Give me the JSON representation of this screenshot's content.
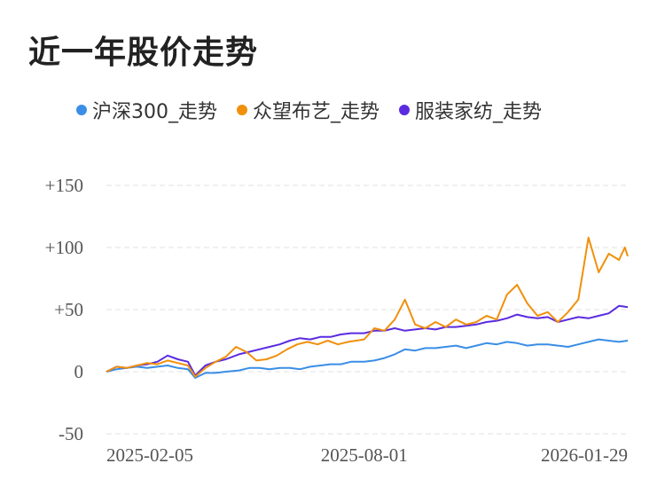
{
  "page": {
    "title": "近一年股价走势"
  },
  "chart_data": {
    "type": "line",
    "title": "近一年股价走势",
    "xlabel": "",
    "ylabel": "",
    "x_tick_labels": [
      "2025-02-05",
      "2025-08-01",
      "2026-01-29"
    ],
    "y_ticks": [
      {
        "value": 150,
        "label": "+150"
      },
      {
        "value": 100,
        "label": "+100"
      },
      {
        "value": 50,
        "label": "+50"
      },
      {
        "value": 0,
        "label": "0"
      },
      {
        "value": -50,
        "label": "-50"
      }
    ],
    "ylim": [
      -50,
      150
    ],
    "xlim": [
      "2025-02-05",
      "2026-01-29"
    ],
    "grid": true,
    "legend_position": "top",
    "series": [
      {
        "name": "沪深300_走势",
        "color": "#3a8ee6",
        "points": [
          [
            "2025-02-05",
            0
          ],
          [
            "2025-02-12",
            2
          ],
          [
            "2025-02-19",
            3
          ],
          [
            "2025-02-26",
            4
          ],
          [
            "2025-03-05",
            3
          ],
          [
            "2025-03-12",
            4
          ],
          [
            "2025-03-19",
            5
          ],
          [
            "2025-03-26",
            3
          ],
          [
            "2025-04-02",
            2
          ],
          [
            "2025-04-07",
            -5
          ],
          [
            "2025-04-14",
            -1
          ],
          [
            "2025-04-21",
            -1
          ],
          [
            "2025-04-28",
            0
          ],
          [
            "2025-05-07",
            1
          ],
          [
            "2025-05-14",
            3
          ],
          [
            "2025-05-21",
            3
          ],
          [
            "2025-05-28",
            2
          ],
          [
            "2025-06-04",
            3
          ],
          [
            "2025-06-11",
            3
          ],
          [
            "2025-06-18",
            2
          ],
          [
            "2025-06-25",
            4
          ],
          [
            "2025-07-02",
            5
          ],
          [
            "2025-07-09",
            6
          ],
          [
            "2025-07-16",
            6
          ],
          [
            "2025-07-23",
            8
          ],
          [
            "2025-08-01",
            8
          ],
          [
            "2025-08-08",
            9
          ],
          [
            "2025-08-15",
            11
          ],
          [
            "2025-08-22",
            14
          ],
          [
            "2025-08-29",
            18
          ],
          [
            "2025-09-05",
            17
          ],
          [
            "2025-09-12",
            19
          ],
          [
            "2025-09-19",
            19
          ],
          [
            "2025-09-26",
            20
          ],
          [
            "2025-10-03",
            21
          ],
          [
            "2025-10-10",
            19
          ],
          [
            "2025-10-17",
            21
          ],
          [
            "2025-10-24",
            23
          ],
          [
            "2025-10-31",
            22
          ],
          [
            "2025-11-07",
            24
          ],
          [
            "2025-11-14",
            23
          ],
          [
            "2025-11-21",
            21
          ],
          [
            "2025-11-28",
            22
          ],
          [
            "2025-12-05",
            22
          ],
          [
            "2025-12-12",
            21
          ],
          [
            "2025-12-19",
            20
          ],
          [
            "2025-12-26",
            22
          ],
          [
            "2026-01-02",
            24
          ],
          [
            "2026-01-09",
            26
          ],
          [
            "2026-01-16",
            25
          ],
          [
            "2026-01-23",
            24
          ],
          [
            "2026-01-29",
            25
          ]
        ]
      },
      {
        "name": "众望布艺_走势",
        "color": "#f0900c",
        "points": [
          [
            "2025-02-05",
            0
          ],
          [
            "2025-02-12",
            4
          ],
          [
            "2025-02-19",
            3
          ],
          [
            "2025-02-26",
            5
          ],
          [
            "2025-03-05",
            7
          ],
          [
            "2025-03-12",
            6
          ],
          [
            "2025-03-19",
            9
          ],
          [
            "2025-03-26",
            7
          ],
          [
            "2025-04-02",
            5
          ],
          [
            "2025-04-07",
            -4
          ],
          [
            "2025-04-14",
            3
          ],
          [
            "2025-04-21",
            8
          ],
          [
            "2025-04-28",
            12
          ],
          [
            "2025-05-05",
            20
          ],
          [
            "2025-05-12",
            16
          ],
          [
            "2025-05-19",
            9
          ],
          [
            "2025-05-26",
            10
          ],
          [
            "2025-06-02",
            13
          ],
          [
            "2025-06-09",
            18
          ],
          [
            "2025-06-16",
            22
          ],
          [
            "2025-06-23",
            24
          ],
          [
            "2025-06-30",
            22
          ],
          [
            "2025-07-07",
            25
          ],
          [
            "2025-07-14",
            22
          ],
          [
            "2025-07-21",
            24
          ],
          [
            "2025-08-01",
            26
          ],
          [
            "2025-08-08",
            35
          ],
          [
            "2025-08-15",
            33
          ],
          [
            "2025-08-22",
            42
          ],
          [
            "2025-08-29",
            58
          ],
          [
            "2025-09-05",
            38
          ],
          [
            "2025-09-12",
            35
          ],
          [
            "2025-09-19",
            40
          ],
          [
            "2025-09-26",
            36
          ],
          [
            "2025-10-03",
            42
          ],
          [
            "2025-10-10",
            38
          ],
          [
            "2025-10-17",
            40
          ],
          [
            "2025-10-24",
            45
          ],
          [
            "2025-10-31",
            42
          ],
          [
            "2025-11-07",
            62
          ],
          [
            "2025-11-14",
            70
          ],
          [
            "2025-11-21",
            55
          ],
          [
            "2025-11-28",
            45
          ],
          [
            "2025-12-05",
            48
          ],
          [
            "2025-12-12",
            40
          ],
          [
            "2025-12-19",
            48
          ],
          [
            "2025-12-26",
            58
          ],
          [
            "2026-01-02",
            108
          ],
          [
            "2026-01-09",
            80
          ],
          [
            "2026-01-16",
            95
          ],
          [
            "2026-01-23",
            90
          ],
          [
            "2026-01-27",
            100
          ],
          [
            "2026-01-29",
            93
          ]
        ]
      },
      {
        "name": "服装家纺_走势",
        "color": "#5a2be0",
        "points": [
          [
            "2025-02-05",
            0
          ],
          [
            "2025-02-12",
            4
          ],
          [
            "2025-02-19",
            3
          ],
          [
            "2025-02-26",
            5
          ],
          [
            "2025-03-05",
            6
          ],
          [
            "2025-03-12",
            8
          ],
          [
            "2025-03-19",
            13
          ],
          [
            "2025-03-26",
            10
          ],
          [
            "2025-04-02",
            8
          ],
          [
            "2025-04-07",
            -3
          ],
          [
            "2025-04-14",
            5
          ],
          [
            "2025-04-21",
            8
          ],
          [
            "2025-04-28",
            10
          ],
          [
            "2025-05-07",
            14
          ],
          [
            "2025-05-14",
            16
          ],
          [
            "2025-05-21",
            18
          ],
          [
            "2025-05-28",
            20
          ],
          [
            "2025-06-04",
            22
          ],
          [
            "2025-06-11",
            25
          ],
          [
            "2025-06-18",
            27
          ],
          [
            "2025-06-25",
            26
          ],
          [
            "2025-07-02",
            28
          ],
          [
            "2025-07-09",
            28
          ],
          [
            "2025-07-16",
            30
          ],
          [
            "2025-07-23",
            31
          ],
          [
            "2025-08-01",
            31
          ],
          [
            "2025-08-08",
            33
          ],
          [
            "2025-08-15",
            33
          ],
          [
            "2025-08-22",
            35
          ],
          [
            "2025-08-29",
            33
          ],
          [
            "2025-09-05",
            34
          ],
          [
            "2025-09-12",
            35
          ],
          [
            "2025-09-19",
            34
          ],
          [
            "2025-09-26",
            36
          ],
          [
            "2025-10-03",
            36
          ],
          [
            "2025-10-10",
            37
          ],
          [
            "2025-10-17",
            38
          ],
          [
            "2025-10-24",
            40
          ],
          [
            "2025-10-31",
            41
          ],
          [
            "2025-11-07",
            43
          ],
          [
            "2025-11-14",
            46
          ],
          [
            "2025-11-21",
            44
          ],
          [
            "2025-11-28",
            43
          ],
          [
            "2025-12-05",
            44
          ],
          [
            "2025-12-12",
            40
          ],
          [
            "2025-12-19",
            42
          ],
          [
            "2025-12-26",
            44
          ],
          [
            "2026-01-02",
            43
          ],
          [
            "2026-01-09",
            45
          ],
          [
            "2026-01-16",
            47
          ],
          [
            "2026-01-23",
            53
          ],
          [
            "2026-01-29",
            52
          ]
        ]
      }
    ]
  }
}
